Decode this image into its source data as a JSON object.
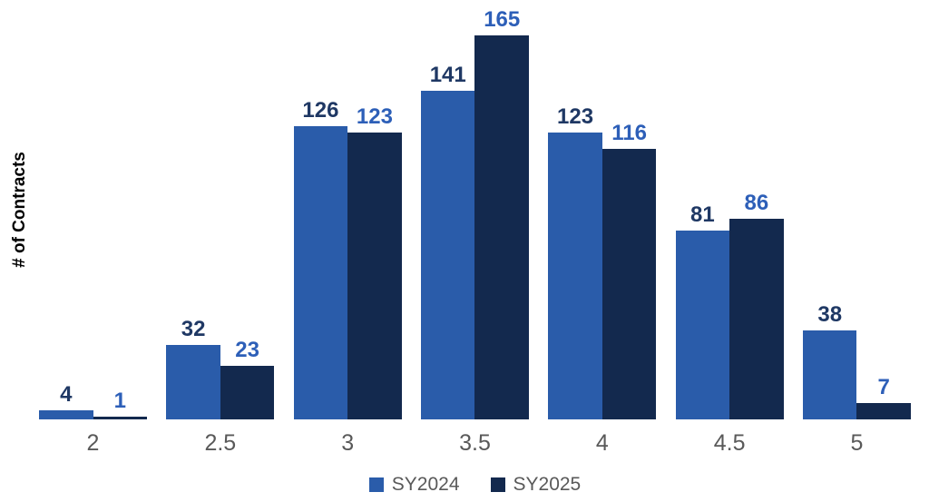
{
  "chart_data": {
    "type": "bar",
    "title": "",
    "categories": [
      "2",
      "2.5",
      "3",
      "3.5",
      "4",
      "4.5",
      "5"
    ],
    "series": [
      {
        "name": "SY2024",
        "values": [
          4,
          32,
          126,
          141,
          123,
          81,
          38
        ],
        "bar_color": "#2a5caa",
        "label_color": "#1f3864"
      },
      {
        "name": "SY2025",
        "values": [
          1,
          23,
          123,
          165,
          116,
          86,
          7
        ],
        "bar_color": "#13294e",
        "label_color": "#2d5fb8"
      }
    ],
    "xlabel": "",
    "ylabel": "# of Contracts",
    "ylim": [
      0,
      180
    ],
    "grid": false,
    "axis_lines": false,
    "data_labels": true,
    "tick_label_color": "#595959",
    "legend_position": "bottom-center",
    "legend_text_color": "#595959",
    "background_color": "#ffffff"
  }
}
